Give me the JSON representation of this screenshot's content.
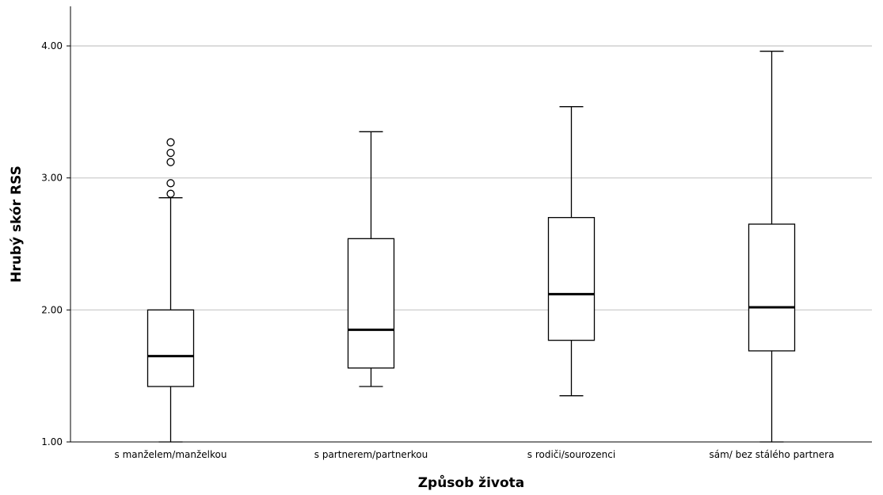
{
  "chart_data": {
    "type": "boxplot",
    "title": "",
    "xlabel": "Způsob života",
    "ylabel": "Hrubý skór RSS",
    "ylim": [
      1.0,
      4.3
    ],
    "yticks": [
      "1.00",
      "2.00",
      "3.00",
      "4.00"
    ],
    "grid": "horizontal",
    "categories": [
      "s manželem/manželkou",
      "s partnerem/partnerkou",
      "s rodiči/sourozenci",
      "sám/ bez stálého partnera"
    ],
    "boxes": [
      {
        "whisker_low": 1.0,
        "q1": 1.42,
        "median": 1.65,
        "q3": 2.0,
        "whisker_high": 2.85,
        "outliers": [
          2.88,
          2.96,
          3.12,
          3.19,
          3.27
        ]
      },
      {
        "whisker_low": 1.42,
        "q1": 1.56,
        "median": 1.85,
        "q3": 2.54,
        "whisker_high": 3.35,
        "outliers": []
      },
      {
        "whisker_low": 1.35,
        "q1": 1.77,
        "median": 2.12,
        "q3": 2.7,
        "whisker_high": 3.54,
        "outliers": []
      },
      {
        "whisker_low": 1.0,
        "q1": 1.69,
        "median": 2.02,
        "q3": 2.65,
        "whisker_high": 3.96,
        "outliers": []
      }
    ]
  }
}
